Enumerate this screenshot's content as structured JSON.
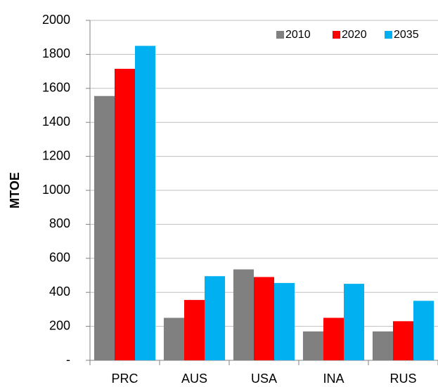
{
  "chart_data": {
    "type": "bar",
    "y_label": "MTOE",
    "categories": [
      "PRC",
      "AUS",
      "USA",
      "INA",
      "RUS"
    ],
    "series": [
      {
        "name": "2010",
        "color": "#808080",
        "values": [
          1555,
          250,
          535,
          170,
          170
        ]
      },
      {
        "name": "2020",
        "color": "#ff0000",
        "values": [
          1715,
          355,
          490,
          250,
          230
        ]
      },
      {
        "name": "2035",
        "color": "#00b0f0",
        "values": [
          1850,
          495,
          455,
          450,
          350
        ]
      }
    ],
    "ylim": [
      0,
      2000
    ],
    "yticks": [
      {
        "value": 0,
        "label": "-"
      },
      200,
      400,
      600,
      800,
      1000,
      1200,
      1400,
      1600,
      1800,
      2000
    ],
    "grid": true,
    "legend": "top-right"
  }
}
